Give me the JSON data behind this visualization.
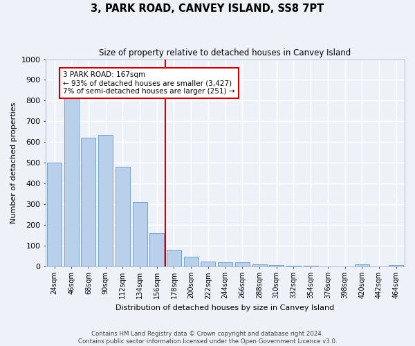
{
  "title": "3, PARK ROAD, CANVEY ISLAND, SS8 7PT",
  "subtitle": "Size of property relative to detached houses in Canvey Island",
  "xlabel": "Distribution of detached houses by size in Canvey Island",
  "ylabel": "Number of detached properties",
  "categories": [
    "24sqm",
    "46sqm",
    "68sqm",
    "90sqm",
    "112sqm",
    "134sqm",
    "156sqm",
    "178sqm",
    "200sqm",
    "222sqm",
    "244sqm",
    "266sqm",
    "288sqm",
    "310sqm",
    "332sqm",
    "354sqm",
    "376sqm",
    "398sqm",
    "420sqm",
    "442sqm",
    "464sqm"
  ],
  "values": [
    500,
    810,
    620,
    635,
    480,
    310,
    160,
    80,
    45,
    22,
    18,
    18,
    10,
    5,
    2,
    1,
    0,
    0,
    8,
    0,
    5
  ],
  "bar_color": "#b8d0ea",
  "bar_edge_color": "#6898c8",
  "vline_index": 7,
  "annotation_title": "3 PARK ROAD: 167sqm",
  "annotation_line1": "← 93% of detached houses are smaller (3,427)",
  "annotation_line2": "7% of semi-detached houses are larger (251) →",
  "annotation_box_color": "#ffffff",
  "annotation_box_edge_color": "#cc0000",
  "vline_color": "#cc0000",
  "background_color": "#eef2f8",
  "grid_color": "#ffffff",
  "ylim": [
    0,
    1000
  ],
  "footer1": "Contains HM Land Registry data © Crown copyright and database right 2024.",
  "footer2": "Contains public sector information licensed under the Open Government Licence v3.0."
}
